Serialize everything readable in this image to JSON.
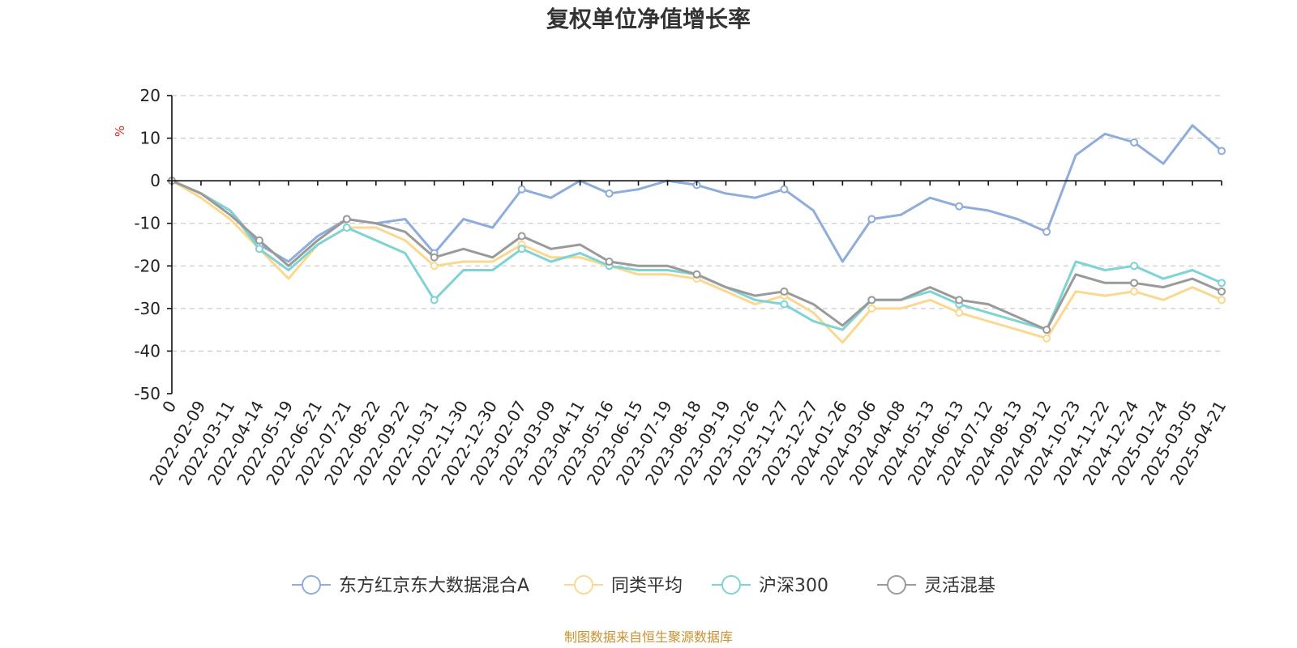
{
  "chart_data": {
    "type": "line",
    "title": "复权单位净值增长率",
    "ylabel": "%",
    "ylim": [
      -50,
      20
    ],
    "yticks": [
      20,
      10,
      0,
      -10,
      -20,
      -30,
      -40,
      -50
    ],
    "grid": true,
    "legend_position": "bottom",
    "x_tick_labels": [
      "0",
      "2022-02-09",
      "2022-03-11",
      "2022-04-14",
      "2022-05-19",
      "2022-06-21",
      "2022-07-21",
      "2022-08-22",
      "2022-09-22",
      "2022-10-31",
      "2022-11-30",
      "2022-12-30",
      "2023-02-07",
      "2023-03-09",
      "2023-04-11",
      "2023-05-16",
      "2023-06-15",
      "2023-07-19",
      "2023-08-18",
      "2023-09-19",
      "2023-10-26",
      "2023-11-27",
      "2023-12-27",
      "2024-01-26",
      "2024-03-06",
      "2024-04-08",
      "2024-05-13",
      "2024-06-13",
      "2024-07-12",
      "2024-08-13",
      "2024-09-12",
      "2024-10-23",
      "2024-11-22",
      "2024-12-24",
      "2025-01-24",
      "2025-03-05",
      "2025-04-21"
    ],
    "x": [
      0,
      1,
      2,
      3,
      4,
      5,
      6,
      7,
      8,
      9,
      10,
      11,
      12,
      13,
      14,
      15,
      16,
      17,
      18,
      19,
      20,
      21,
      22,
      23,
      24,
      25,
      26,
      27,
      28,
      29,
      30,
      31,
      32,
      33,
      34,
      35,
      36
    ],
    "series": [
      {
        "name": "东方红京东大数据混合A",
        "color": "#8eacdc",
        "values": [
          0,
          -3,
          -7,
          -15,
          -19,
          -13,
          -9,
          -10,
          -9,
          -17,
          -9,
          -11,
          -2,
          -4,
          0,
          -3,
          -2,
          0,
          -1,
          -3,
          -4,
          -2,
          -7,
          -19,
          -9,
          -8,
          -4,
          -6,
          -7,
          -9,
          -12,
          6,
          11,
          9,
          4,
          13,
          7
        ]
      },
      {
        "name": "同类平均",
        "color": "#fbd88f",
        "values": [
          0,
          -4,
          -9,
          -16,
          -23,
          -15,
          -11,
          -11,
          -14,
          -20,
          -19,
          -19,
          -15,
          -18,
          -18,
          -20,
          -22,
          -22,
          -23,
          -26,
          -29,
          -27,
          -31,
          -38,
          -30,
          -30,
          -28,
          -31,
          -33,
          -35,
          -37,
          -26,
          -27,
          -26,
          -28,
          -25,
          -28
        ]
      },
      {
        "name": "沪深300",
        "color": "#7fd3d3",
        "values": [
          0,
          -3,
          -7,
          -16,
          -21,
          -15,
          -11,
          -14,
          -17,
          -28,
          -21,
          -21,
          -16,
          -19,
          -17,
          -20,
          -21,
          -21,
          -22,
          -25,
          -28,
          -29,
          -33,
          -35,
          -28,
          -28,
          -26,
          -29,
          -31,
          -33,
          -35,
          -19,
          -21,
          -20,
          -23,
          -21,
          -24
        ]
      },
      {
        "name": "灵活混基",
        "color": "#9a9a9a",
        "values": [
          0,
          -3,
          -8,
          -14,
          -20,
          -14,
          -9,
          -10,
          -12,
          -18,
          -16,
          -18,
          -13,
          -16,
          -15,
          -19,
          -20,
          -20,
          -22,
          -25,
          -27,
          -26,
          -29,
          -34,
          -28,
          -28,
          -25,
          -28,
          -29,
          -32,
          -35,
          -22,
          -24,
          -24,
          -25,
          -23,
          -26
        ]
      }
    ]
  },
  "source_note": "制图数据来自恒生聚源数据库"
}
